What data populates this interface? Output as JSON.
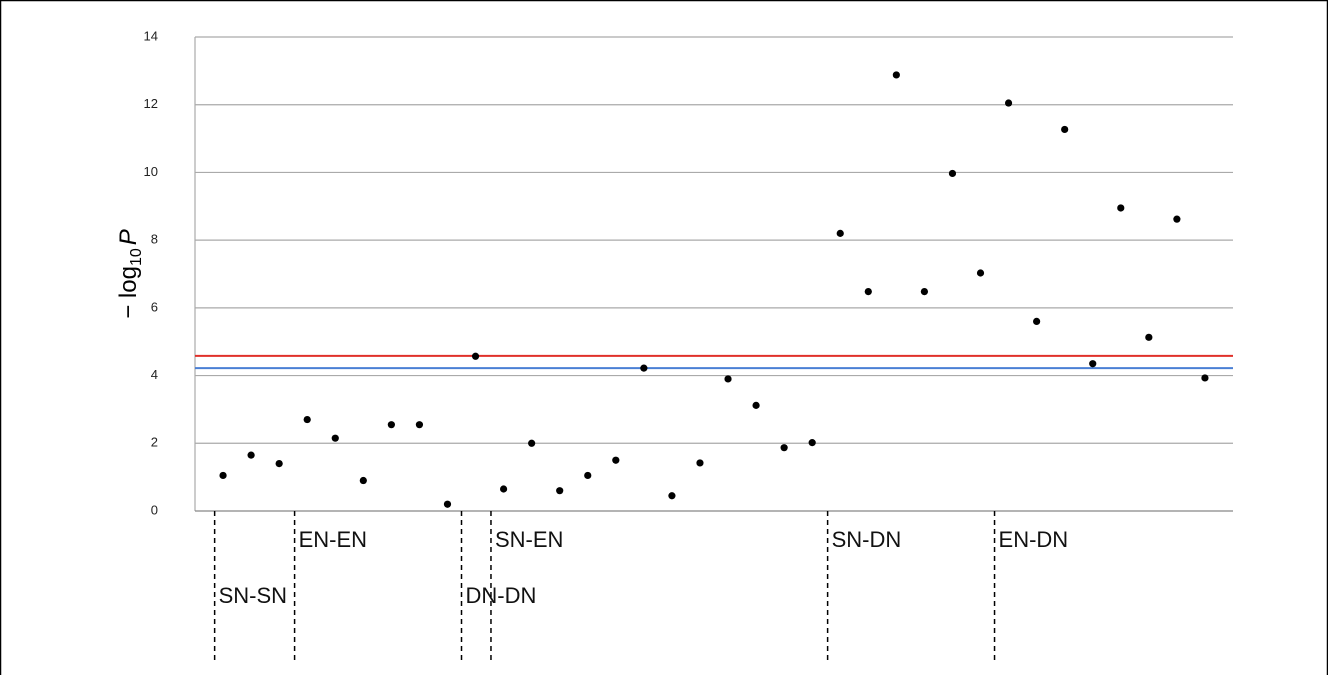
{
  "chart_data": {
    "type": "scatter",
    "ylabel_parts": [
      "− log",
      "10",
      "P"
    ],
    "x": [
      1,
      2,
      3,
      4,
      5,
      6,
      7,
      8,
      9,
      10,
      11,
      12,
      13,
      14,
      15,
      16,
      17,
      18,
      19,
      20,
      21,
      22,
      23,
      24,
      25,
      26,
      27,
      28,
      29,
      30,
      31,
      32,
      33,
      34,
      35,
      36
    ],
    "series": [
      {
        "color": "#000000",
        "values": [
          1.05,
          1.65,
          1.4,
          2.7,
          2.15,
          0.9,
          2.55,
          2.55,
          0.2,
          4.57,
          0.65,
          2.0,
          0.6,
          1.05,
          1.5,
          4.22,
          0.45,
          1.42,
          3.9,
          3.12,
          1.87,
          2.02,
          8.2,
          6.48,
          12.88,
          6.48,
          9.97,
          7.03,
          12.05,
          5.6,
          11.27,
          4.35,
          8.95,
          5.13,
          8.62,
          3.93
        ]
      }
    ],
    "xlim": [
      0,
      37
    ],
    "ylim": [
      0,
      14
    ],
    "yticks": [
      0,
      2,
      4,
      6,
      8,
      10,
      12,
      14
    ],
    "grid": true,
    "hlines": [
      {
        "value": 4.58,
        "color": "#e0302a"
      },
      {
        "value": 4.22,
        "color": "#4a7fd4"
      }
    ],
    "groups": [
      {
        "label": "SN-SN",
        "x": 0.7,
        "row": 2
      },
      {
        "label": "EN-EN",
        "x": 3.55,
        "row": 1
      },
      {
        "label": "DN-DN",
        "x": 9.5,
        "row": 2
      },
      {
        "label": "SN-EN",
        "x": 10.55,
        "row": 1
      },
      {
        "label": "SN-DN",
        "x": 22.55,
        "row": 1
      },
      {
        "label": "EN-DN",
        "x": 28.5,
        "row": 1
      }
    ]
  }
}
